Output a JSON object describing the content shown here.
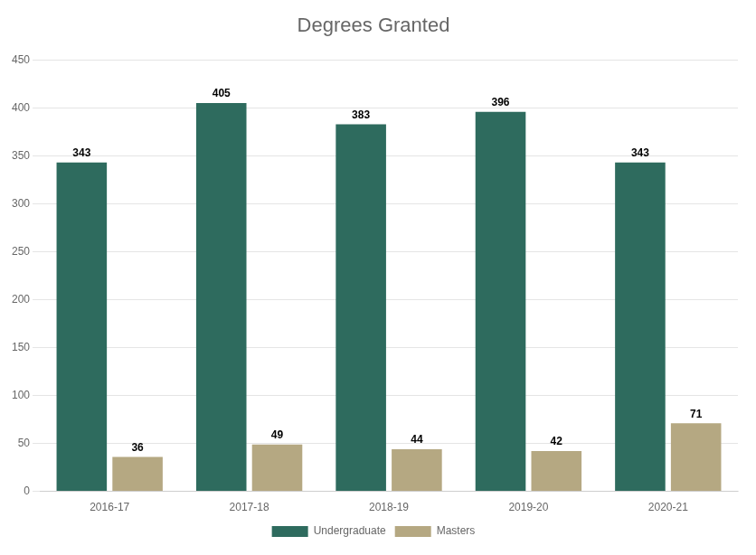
{
  "chart_data": {
    "type": "bar",
    "title": "Degrees Granted",
    "categories": [
      "2016-17",
      "2017-18",
      "2018-19",
      "2019-20",
      "2020-21"
    ],
    "series": [
      {
        "name": "Undergraduate",
        "color": "#2E6B5E",
        "values": [
          343,
          405,
          383,
          396,
          343
        ]
      },
      {
        "name": "Masters",
        "color": "#B5A882",
        "values": [
          36,
          49,
          44,
          42,
          71
        ]
      }
    ],
    "ylim": [
      0,
      450
    ],
    "yticks": [
      0,
      50,
      100,
      150,
      200,
      250,
      300,
      350,
      400,
      450
    ],
    "grid": true,
    "legend": "bottom",
    "data_labels": true
  }
}
